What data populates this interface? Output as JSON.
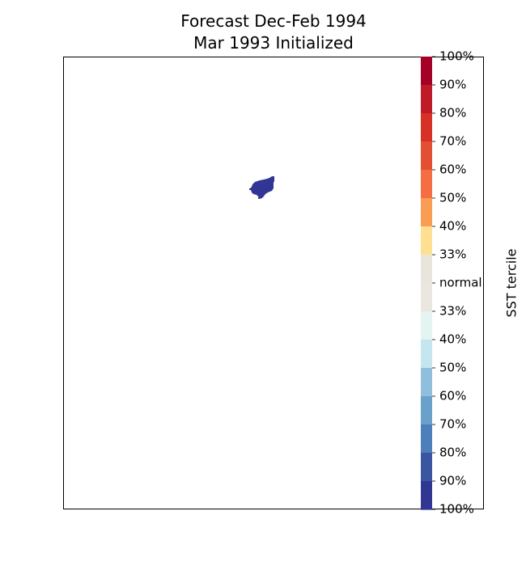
{
  "figure": {
    "title_line1": "Forecast Dec-Feb 1994",
    "title_line2": "Mar 1993 Initialized"
  },
  "chart_data": {
    "type": "heatmap",
    "title": "Forecast Dec-Feb 1994\nMar 1993 Initialized",
    "map": {
      "frame_color": "#000000",
      "background": "#ffffff",
      "shaded_region": {
        "category": "below-normal",
        "level": "90%",
        "color": "#313695"
      }
    },
    "colorbar": {
      "label": "SST tercile",
      "orientation": "vertical",
      "placement": "right",
      "ticks": [
        "100%",
        "90%",
        "80%",
        "70%",
        "60%",
        "50%",
        "40%",
        "33%",
        "normal",
        "33%",
        "40%",
        "50%",
        "60%",
        "70%",
        "80%",
        "90%",
        "100%"
      ],
      "bands": [
        {
          "category": "above",
          "range": "90%-100%",
          "color": "#a50026"
        },
        {
          "category": "above",
          "range": "80%-90%",
          "color": "#be1a28"
        },
        {
          "category": "above",
          "range": "70%-80%",
          "color": "#d73027"
        },
        {
          "category": "above",
          "range": "60%-70%",
          "color": "#e34f33"
        },
        {
          "category": "above",
          "range": "50%-60%",
          "color": "#f46d43"
        },
        {
          "category": "above",
          "range": "40%-50%",
          "color": "#f99c54"
        },
        {
          "category": "above",
          "range": "33%-40%",
          "color": "#fee090"
        },
        {
          "category": "normal",
          "range": "upper",
          "color": "#eae5dc"
        },
        {
          "category": "normal",
          "range": "lower",
          "color": "#ebe6e0"
        },
        {
          "category": "below",
          "range": "33%-40%",
          "color": "#e3f4f1"
        },
        {
          "category": "below",
          "range": "40%-50%",
          "color": "#c6e6ef"
        },
        {
          "category": "below",
          "range": "50%-60%",
          "color": "#8fbfdc"
        },
        {
          "category": "below",
          "range": "60%-70%",
          "color": "#6aa1ca"
        },
        {
          "category": "below",
          "range": "70%-80%",
          "color": "#4d7fba"
        },
        {
          "category": "below",
          "range": "80%-90%",
          "color": "#3a55a2"
        },
        {
          "category": "below",
          "range": "90%-100%",
          "color": "#313695"
        }
      ]
    }
  }
}
